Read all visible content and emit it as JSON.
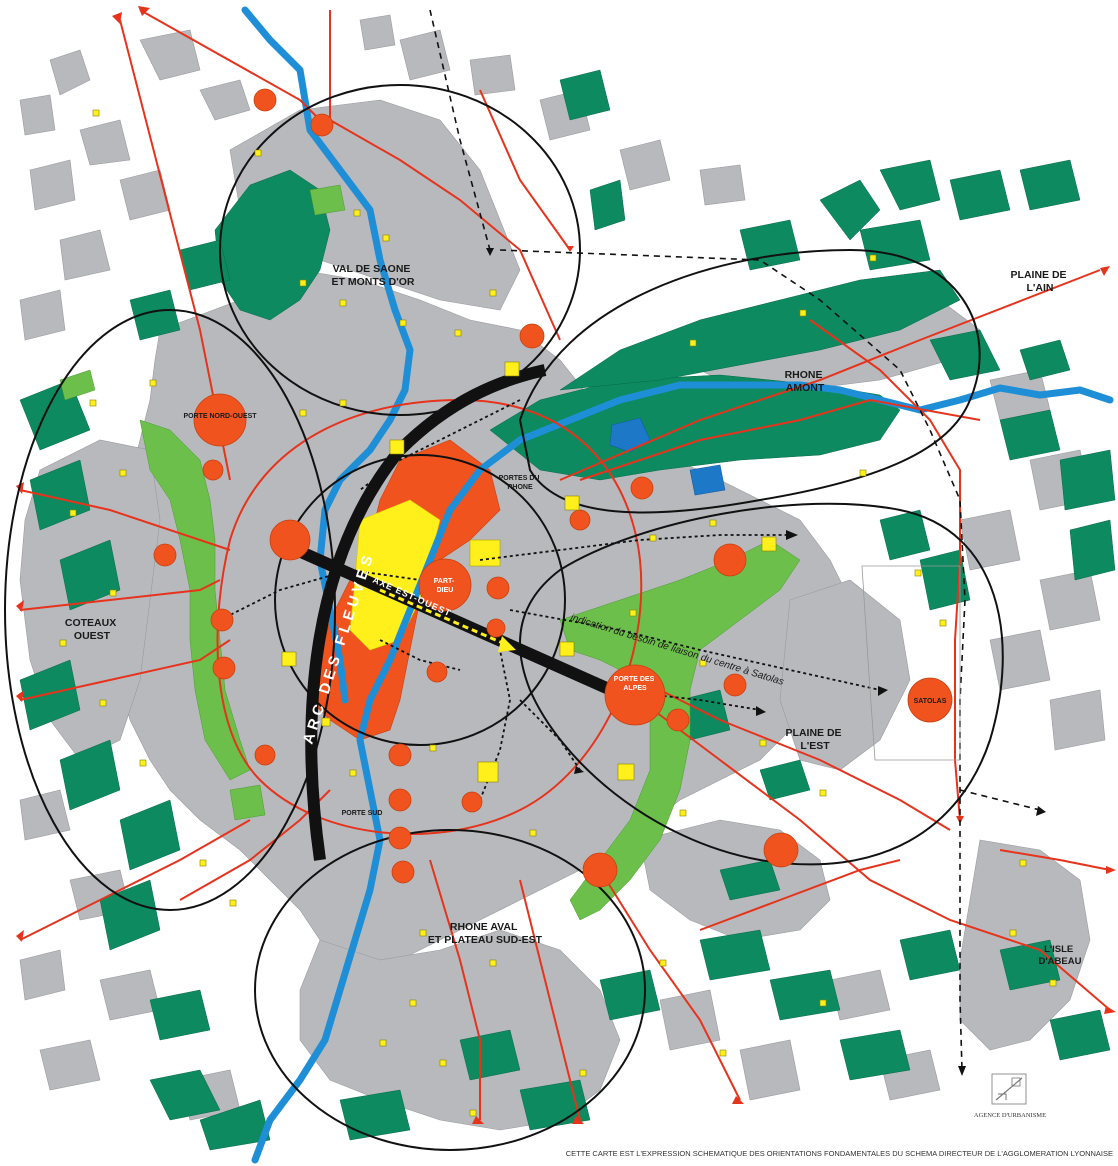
{
  "colors": {
    "urban": "#b8b9bd",
    "forest": "#0d8a5f",
    "greenway": "#6cbf4a",
    "river": "#1e8fd6",
    "lake": "#1e78c8",
    "centre": "#f0531e",
    "core": "#ffef1a",
    "node": "#ffef1a",
    "road": "#e6331c",
    "sector": "#111111"
  },
  "sectors": {
    "val_de_saone": [
      "VAL DE SAONE",
      "ET MONTS D'OR"
    ],
    "plaine_ain": [
      "PLAINE DE",
      "L'AIN"
    ],
    "rhone_amont": [
      "RHONE",
      "AMONT"
    ],
    "coteaux_ouest": [
      "COTEAUX",
      "OUEST"
    ],
    "plaine_est": [
      "PLAINE DE",
      "L'EST"
    ],
    "rhone_aval": [
      "RHONE AVAL",
      "ET PLATEAU SUD-EST"
    ],
    "isle_abeau": [
      "L'ISLE",
      "D'ABEAU"
    ]
  },
  "places": {
    "porte_nord_ouest": "PORTE NORD-OUEST",
    "portes_du_rhone": [
      "PORTES DU",
      "RHONE"
    ],
    "part_dieu": [
      "PART-",
      "DIEU"
    ],
    "porte_des_alpes": [
      "PORTE DES",
      "ALPES"
    ],
    "satolas": "SATOLAS",
    "porte_sud": "PORTE SUD"
  },
  "axes": {
    "arc_des_fleuves": "ARC DES FLEUVES",
    "axe_est_ouest": "AXE EST-OUEST"
  },
  "annotation": "indication du besoin de liaison du centre à Satolas",
  "agency": "AGENCE D'URBANISME",
  "footer": "CETTE CARTE EST L'EXPRESSION SCHEMATIQUE DES ORIENTATIONS FONDAMENTALES DU SCHEMA DIRECTEUR DE L'AGGLOMERATION LYONNAISE"
}
